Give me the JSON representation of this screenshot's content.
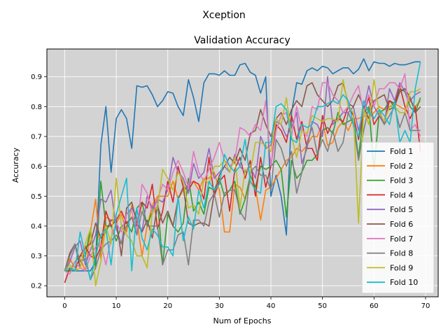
{
  "figure": {
    "suptitle": "Xception"
  },
  "chart_data": {
    "type": "line",
    "title": "Validation Accuracy",
    "xlabel": "Num of Epochs",
    "ylabel": "Accuracy",
    "xlim": [
      -3.45,
      72.45
    ],
    "ylim": [
      0.163,
      0.993
    ],
    "xticks": [
      0,
      10,
      20,
      30,
      40,
      50,
      60,
      70
    ],
    "yticks": [
      0.2,
      0.3,
      0.4,
      0.5,
      0.6,
      0.7,
      0.8,
      0.9
    ],
    "grid": true,
    "background": "#d3d3d3",
    "legend_position": "lower-right",
    "series": [
      {
        "name": "Fold 1",
        "color": "#1f77b4",
        "values": [
          0.25,
          0.25,
          0.25,
          0.25,
          0.25,
          0.25,
          0.28,
          0.67,
          0.8,
          0.58,
          0.76,
          0.79,
          0.76,
          0.66,
          0.87,
          0.865,
          0.87,
          0.84,
          0.8,
          0.82,
          0.85,
          0.845,
          0.8,
          0.77,
          0.89,
          0.83,
          0.75,
          0.88,
          0.91,
          0.91,
          0.905,
          0.92,
          0.905,
          0.905,
          0.94,
          0.945,
          0.915,
          0.905,
          0.845,
          0.9,
          0.5,
          0.57,
          0.5,
          0.37,
          0.78,
          0.88,
          0.875,
          0.92,
          0.93,
          0.92,
          0.935,
          0.93,
          0.91,
          0.92,
          0.93,
          0.93,
          0.91,
          0.925,
          0.96,
          0.92,
          0.95,
          0.945,
          0.945,
          0.935,
          0.945,
          0.94,
          0.94,
          0.945,
          0.95,
          0.95
        ]
      },
      {
        "name": "Fold 2",
        "color": "#ff7f0e",
        "values": [
          0.25,
          0.29,
          0.26,
          0.29,
          0.25,
          0.38,
          0.49,
          0.29,
          0.43,
          0.42,
          0.41,
          0.44,
          0.38,
          0.47,
          0.42,
          0.3,
          0.4,
          0.47,
          0.5,
          0.5,
          0.5,
          0.55,
          0.49,
          0.52,
          0.54,
          0.55,
          0.52,
          0.56,
          0.56,
          0.58,
          0.52,
          0.38,
          0.38,
          0.54,
          0.53,
          0.49,
          0.55,
          0.53,
          0.42,
          0.52,
          0.53,
          0.56,
          0.59,
          0.62,
          0.63,
          0.66,
          0.65,
          0.67,
          0.7,
          0.7,
          0.75,
          0.67,
          0.68,
          0.73,
          0.75,
          0.72,
          0.76,
          0.76,
          0.77,
          0.76,
          0.78,
          0.8,
          0.79,
          0.8,
          0.81,
          0.8,
          0.79,
          0.82,
          0.8,
          0.82
        ]
      },
      {
        "name": "Fold 3",
        "color": "#2ca02c",
        "values": [
          0.25,
          0.25,
          0.28,
          0.3,
          0.3,
          0.39,
          0.26,
          0.55,
          0.4,
          0.4,
          0.35,
          0.4,
          0.41,
          0.38,
          0.46,
          0.48,
          0.4,
          0.45,
          0.49,
          0.27,
          0.44,
          0.4,
          0.38,
          0.41,
          0.56,
          0.45,
          0.48,
          0.44,
          0.53,
          0.52,
          0.56,
          0.5,
          0.52,
          0.55,
          0.44,
          0.49,
          0.57,
          0.53,
          0.6,
          0.59,
          0.6,
          0.62,
          0.59,
          0.43,
          0.62,
          0.56,
          0.58,
          0.62,
          0.62,
          0.64,
          0.72,
          0.73,
          0.71,
          0.78,
          0.74,
          0.75,
          0.76,
          0.63,
          0.78,
          0.8,
          0.59,
          0.78,
          0.79,
          0.82,
          0.8,
          0.86,
          0.85,
          0.8,
          0.78,
          0.83
        ]
      },
      {
        "name": "Fold 4",
        "color": "#d62728",
        "values": [
          0.21,
          0.26,
          0.25,
          0.3,
          0.33,
          0.3,
          0.29,
          0.33,
          0.45,
          0.4,
          0.42,
          0.45,
          0.41,
          0.43,
          0.4,
          0.48,
          0.46,
          0.54,
          0.39,
          0.45,
          0.55,
          0.48,
          0.6,
          0.53,
          0.52,
          0.55,
          0.54,
          0.49,
          0.63,
          0.5,
          0.55,
          0.57,
          0.45,
          0.59,
          0.63,
          0.56,
          0.62,
          0.5,
          0.63,
          0.53,
          0.6,
          0.74,
          0.72,
          0.68,
          0.77,
          0.69,
          0.75,
          0.66,
          0.66,
          0.62,
          0.77,
          0.71,
          0.75,
          0.76,
          0.75,
          0.8,
          0.77,
          0.69,
          0.78,
          0.83,
          0.74,
          0.77,
          0.75,
          0.82,
          0.81,
          0.87,
          0.8,
          0.76,
          0.8,
          0.65
        ]
      },
      {
        "name": "Fold 5",
        "color": "#9467bd",
        "values": [
          0.25,
          0.28,
          0.33,
          0.35,
          0.27,
          0.32,
          0.37,
          0.49,
          0.48,
          0.52,
          0.39,
          0.34,
          0.44,
          0.46,
          0.43,
          0.38,
          0.5,
          0.46,
          0.49,
          0.48,
          0.52,
          0.63,
          0.58,
          0.56,
          0.51,
          0.61,
          0.56,
          0.58,
          0.66,
          0.56,
          0.58,
          0.6,
          0.58,
          0.64,
          0.6,
          0.58,
          0.6,
          0.56,
          0.7,
          0.66,
          0.67,
          0.75,
          0.74,
          0.7,
          0.73,
          0.78,
          0.61,
          0.66,
          0.75,
          0.74,
          0.7,
          0.9,
          0.74,
          0.76,
          0.78,
          0.78,
          0.8,
          0.72,
          0.79,
          0.87,
          0.8,
          0.77,
          0.74,
          0.86,
          0.82,
          0.88,
          0.85,
          0.82,
          0.84,
          0.85
        ]
      },
      {
        "name": "Fold 6",
        "color": "#8c564b",
        "values": [
          0.25,
          0.31,
          0.34,
          0.26,
          0.33,
          0.34,
          0.41,
          0.36,
          0.38,
          0.42,
          0.42,
          0.3,
          0.46,
          0.48,
          0.41,
          0.38,
          0.42,
          0.36,
          0.47,
          0.41,
          0.45,
          0.4,
          0.49,
          0.53,
          0.41,
          0.4,
          0.41,
          0.41,
          0.4,
          0.51,
          0.57,
          0.6,
          0.63,
          0.61,
          0.66,
          0.62,
          0.71,
          0.72,
          0.79,
          0.74,
          0.7,
          0.76,
          0.78,
          0.74,
          0.79,
          0.82,
          0.8,
          0.87,
          0.88,
          0.84,
          0.82,
          0.8,
          0.82,
          0.87,
          0.88,
          0.81,
          0.8,
          0.84,
          0.8,
          0.76,
          0.82,
          0.83,
          0.84,
          0.79,
          0.8,
          0.85,
          0.86,
          0.83,
          0.78,
          0.8
        ]
      },
      {
        "name": "Fold 7",
        "color": "#e377c2",
        "values": [
          0.25,
          0.24,
          0.28,
          0.26,
          0.25,
          0.3,
          0.33,
          0.34,
          0.27,
          0.36,
          0.41,
          0.38,
          0.44,
          0.45,
          0.38,
          0.54,
          0.51,
          0.44,
          0.49,
          0.54,
          0.52,
          0.58,
          0.62,
          0.58,
          0.53,
          0.65,
          0.58,
          0.55,
          0.59,
          0.63,
          0.68,
          0.62,
          0.6,
          0.62,
          0.73,
          0.72,
          0.7,
          0.74,
          0.72,
          0.82,
          0.6,
          0.72,
          0.77,
          0.78,
          0.7,
          0.8,
          0.72,
          0.7,
          0.8,
          0.79,
          0.88,
          0.88,
          0.84,
          0.82,
          0.78,
          0.8,
          0.84,
          0.87,
          0.78,
          0.84,
          0.8,
          0.86,
          0.86,
          0.88,
          0.88,
          0.86,
          0.91,
          0.72,
          0.74,
          0.7
        ]
      },
      {
        "name": "Fold 8",
        "color": "#7f7f7f",
        "values": [
          0.25,
          0.3,
          0.34,
          0.28,
          0.29,
          0.22,
          0.26,
          0.32,
          0.34,
          0.35,
          0.37,
          0.34,
          0.4,
          0.43,
          0.37,
          0.45,
          0.4,
          0.4,
          0.4,
          0.27,
          0.32,
          0.32,
          0.37,
          0.38,
          0.27,
          0.42,
          0.42,
          0.4,
          0.48,
          0.51,
          0.43,
          0.51,
          0.52,
          0.52,
          0.45,
          0.42,
          0.58,
          0.6,
          0.57,
          0.57,
          0.52,
          0.69,
          0.66,
          0.6,
          0.65,
          0.51,
          0.58,
          0.68,
          0.73,
          0.64,
          0.69,
          0.65,
          0.72,
          0.65,
          0.68,
          0.78,
          0.74,
          0.62,
          0.72,
          0.8,
          0.76,
          0.79,
          0.74,
          0.77,
          0.8,
          0.73,
          0.78,
          0.72,
          0.72,
          0.72
        ]
      },
      {
        "name": "Fold 9",
        "color": "#bcbd22",
        "values": [
          0.25,
          0.27,
          0.25,
          0.26,
          0.34,
          0.39,
          0.2,
          0.28,
          0.4,
          0.34,
          0.56,
          0.4,
          0.37,
          0.35,
          0.3,
          0.3,
          0.26,
          0.45,
          0.46,
          0.59,
          0.56,
          0.52,
          0.58,
          0.55,
          0.46,
          0.47,
          0.44,
          0.56,
          0.54,
          0.6,
          0.6,
          0.62,
          0.58,
          0.63,
          0.46,
          0.59,
          0.58,
          0.68,
          0.68,
          0.67,
          0.65,
          0.76,
          0.74,
          0.83,
          0.7,
          0.63,
          0.72,
          0.71,
          0.77,
          0.76,
          0.75,
          0.76,
          0.76,
          0.75,
          0.89,
          0.8,
          0.78,
          0.41,
          0.79,
          0.74,
          0.89,
          0.78,
          0.75,
          0.8,
          0.8,
          0.78,
          0.78,
          0.85,
          0.85,
          0.86
        ]
      },
      {
        "name": "Fold 10",
        "color": "#17becf",
        "values": [
          0.25,
          0.26,
          0.25,
          0.38,
          0.3,
          0.22,
          0.3,
          0.37,
          0.39,
          0.27,
          0.44,
          0.5,
          0.56,
          0.25,
          0.46,
          0.36,
          0.32,
          0.39,
          0.37,
          0.33,
          0.33,
          0.3,
          0.5,
          0.35,
          0.43,
          0.39,
          0.52,
          0.46,
          0.55,
          0.52,
          0.54,
          0.64,
          0.6,
          0.58,
          0.6,
          0.69,
          0.55,
          0.52,
          0.51,
          0.68,
          0.68,
          0.8,
          0.81,
          0.79,
          0.69,
          0.68,
          0.74,
          0.73,
          0.74,
          0.8,
          0.8,
          0.81,
          0.82,
          0.81,
          0.84,
          0.82,
          0.74,
          0.7,
          0.82,
          0.78,
          0.76,
          0.79,
          0.77,
          0.74,
          0.82,
          0.68,
          0.72,
          0.68,
          0.86,
          0.95
        ]
      }
    ]
  }
}
